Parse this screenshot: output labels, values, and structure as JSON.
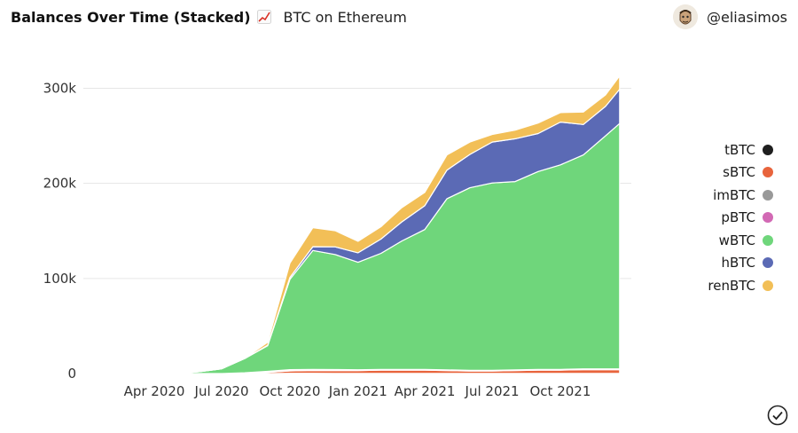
{
  "header": {
    "title": "Balances Over Time (Stacked)",
    "title_icon": "chart-increasing-icon",
    "subtitle": "BTC on Ethereum"
  },
  "user": {
    "handle": "@eliasimos",
    "avatar_icon": "avatar-icon"
  },
  "status": {
    "check_icon": "check-circle-icon"
  },
  "chart_data": {
    "type": "area",
    "stacked": true,
    "title": "Balances Over Time (Stacked)",
    "xlabel": "",
    "ylabel": "",
    "ylim": [
      0,
      320000
    ],
    "xlim": [
      "2020-01-01",
      "2021-12-31"
    ],
    "yticks": [
      0,
      100000,
      200000,
      300000
    ],
    "ytick_labels": [
      "0",
      "100k",
      "200k",
      "300k"
    ],
    "xtick_labels": [
      "Apr 2020",
      "Jul 2020",
      "Oct 2020",
      "Jan 2021",
      "Apr 2021",
      "Jul 2021",
      "Oct 2021"
    ],
    "grid": "horizontal",
    "legend_position": "right",
    "x": [
      "2020-02-01",
      "2020-03-01",
      "2020-04-01",
      "2020-05-01",
      "2020-06-01",
      "2020-07-01",
      "2020-08-01",
      "2020-09-01",
      "2020-10-01",
      "2020-11-01",
      "2020-12-01",
      "2021-01-01",
      "2021-02-01",
      "2021-03-01",
      "2021-04-01",
      "2021-05-01",
      "2021-06-01",
      "2021-07-01",
      "2021-08-01",
      "2021-09-01",
      "2021-10-01",
      "2021-11-01",
      "2021-12-01",
      "2021-12-20"
    ],
    "series": [
      {
        "name": "tBTC",
        "color": "#1f1f1f",
        "values": [
          0,
          0,
          0,
          0,
          0,
          0,
          0,
          10,
          300,
          300,
          200,
          100,
          100,
          100,
          100,
          100,
          100,
          100,
          100,
          100,
          100,
          100,
          100,
          100
        ]
      },
      {
        "name": "sBTC",
        "color": "#e8643c",
        "values": [
          0,
          0,
          0,
          0,
          0,
          0,
          200,
          1200,
          2500,
          3000,
          3000,
          3000,
          3500,
          3500,
          3500,
          3000,
          2500,
          2500,
          3000,
          3500,
          3500,
          4000,
          4000,
          4000
        ]
      },
      {
        "name": "imBTC",
        "color": "#999999",
        "values": [
          0,
          0,
          0,
          0,
          0,
          0,
          500,
          800,
          900,
          800,
          700,
          600,
          500,
          500,
          500,
          500,
          500,
          500,
          500,
          500,
          500,
          500,
          500,
          500
        ]
      },
      {
        "name": "pBTC",
        "color": "#d269b4",
        "values": [
          0,
          0,
          0,
          0,
          0,
          0,
          100,
          300,
          400,
          300,
          300,
          300,
          300,
          300,
          300,
          300,
          300,
          300,
          300,
          300,
          300,
          300,
          300,
          300
        ]
      },
      {
        "name": "wBTC",
        "color": "#6fd67b",
        "values": [
          0,
          0,
          0,
          0,
          2000,
          5000,
          15000,
          27000,
          95000,
          125000,
          121000,
          113000,
          122000,
          135000,
          147000,
          180000,
          192000,
          197000,
          198000,
          208000,
          215000,
          225000,
          245000,
          258000
        ]
      },
      {
        "name": "hBTC",
        "color": "#5b6ab5",
        "values": [
          0,
          0,
          0,
          0,
          0,
          0,
          0,
          500,
          2000,
          4000,
          8000,
          10000,
          15000,
          20000,
          25000,
          30000,
          35000,
          43000,
          45000,
          40000,
          45000,
          32000,
          31000,
          36000
        ]
      },
      {
        "name": "renBTC",
        "color": "#f2bf57",
        "values": [
          0,
          0,
          0,
          0,
          0,
          0,
          300,
          3000,
          15000,
          20000,
          17000,
          12000,
          13000,
          15000,
          14000,
          16000,
          13000,
          8000,
          9000,
          11000,
          10000,
          13000,
          12000,
          14000
        ]
      }
    ]
  }
}
